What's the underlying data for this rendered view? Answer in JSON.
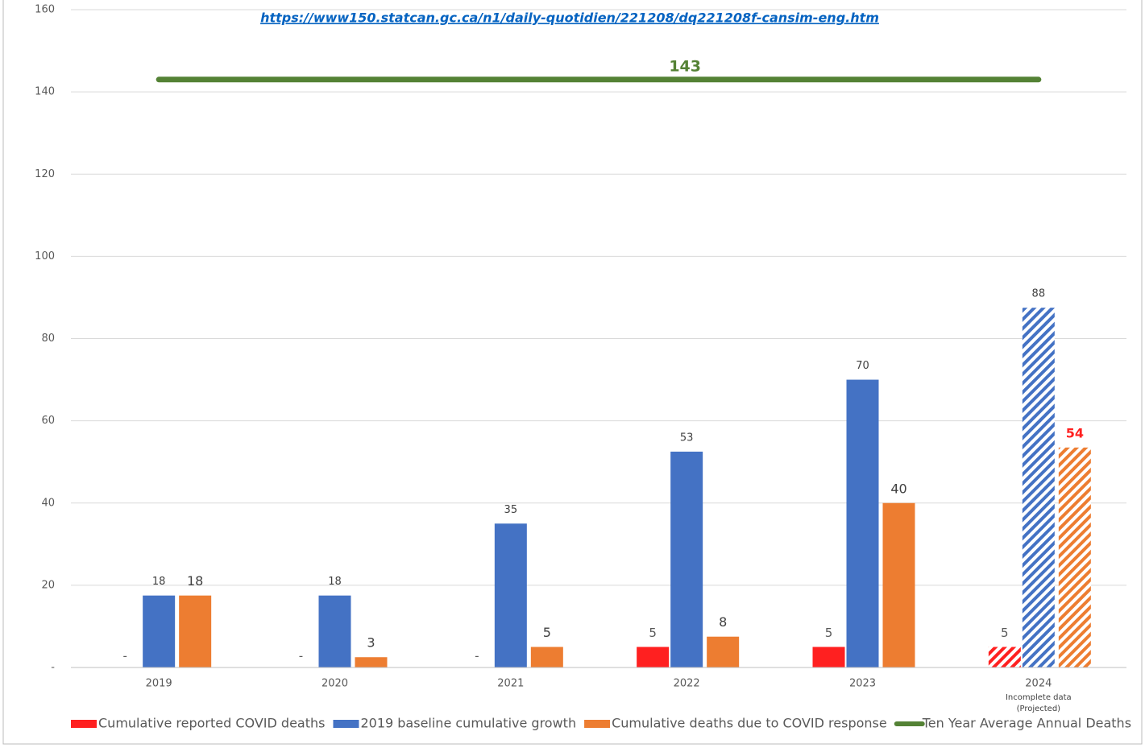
{
  "chart_data": {
    "type": "bar",
    "subtitle": "https://www150.statcan.gc.ca/n1/daily-quotidien/221208/dq221208f-cansim-eng.htm",
    "categories": [
      "2019",
      "2020",
      "2021",
      "2022",
      "2023",
      "2024"
    ],
    "category_note": [
      "Incomplete data",
      "(Projected)"
    ],
    "hatched": [
      false,
      false,
      false,
      false,
      false,
      true
    ],
    "series": [
      {
        "name": "Cumulative reported COVID deaths",
        "color": "#ff2020",
        "values": [
          0,
          0,
          0,
          5,
          5,
          5
        ],
        "value_labels": [
          "-",
          "-",
          "-",
          "5",
          "5",
          "5"
        ]
      },
      {
        "name": "2019 baseline cumulative growth",
        "color": "#4472c4",
        "values": [
          17.5,
          17.5,
          35,
          52.5,
          70,
          87.5
        ],
        "value_labels": [
          "18",
          "18",
          "35",
          "53",
          "70",
          "88"
        ]
      },
      {
        "name": "Cumulative deaths due to COVID response",
        "color": "#ed7d31",
        "values": [
          17.5,
          2.5,
          5,
          7.5,
          40,
          53.5
        ],
        "value_labels": [
          "18",
          "3",
          "5",
          "8",
          "40",
          "54"
        ]
      },
      {
        "name": "Ten Year Average Annual Deaths",
        "color": "#548235",
        "kind": "line",
        "values": [
          143,
          143,
          143,
          143,
          143,
          143
        ]
      }
    ],
    "ylim": [
      0,
      160
    ],
    "yticks": [
      {
        "value": 0,
        "label": "-"
      },
      20,
      40,
      60,
      80,
      100,
      120,
      140,
      160
    ],
    "grid": true
  }
}
